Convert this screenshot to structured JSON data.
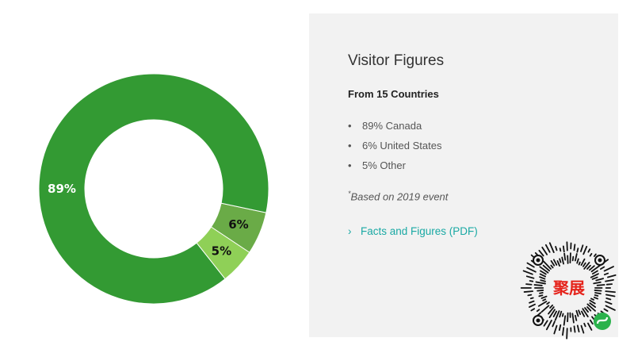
{
  "chart_data": {
    "type": "pie",
    "variant": "donut",
    "categories": [
      "Canada",
      "United States",
      "Other"
    ],
    "values": [
      89,
      6,
      5
    ],
    "labels": [
      "89%",
      "6%",
      "5%"
    ],
    "colors": [
      "#339a33",
      "#6aab47",
      "#8fd057"
    ]
  },
  "panel": {
    "title": "Visitor Figures",
    "subtitle": "From 15 Countries",
    "items": [
      "89% Canada",
      "6% United States",
      "5% Other"
    ],
    "bullet": "•",
    "note_mark": "*",
    "note": "Based on 2019 event",
    "link_icon": "chevron-right-icon",
    "link_chevron": "›",
    "link_label": "Facts and Figures (PDF)",
    "link_color": "#1aa9a4"
  },
  "qr": {
    "logo_text": "聚展",
    "logo_color": "#e5231b",
    "badge_color": "#2bb24c"
  }
}
